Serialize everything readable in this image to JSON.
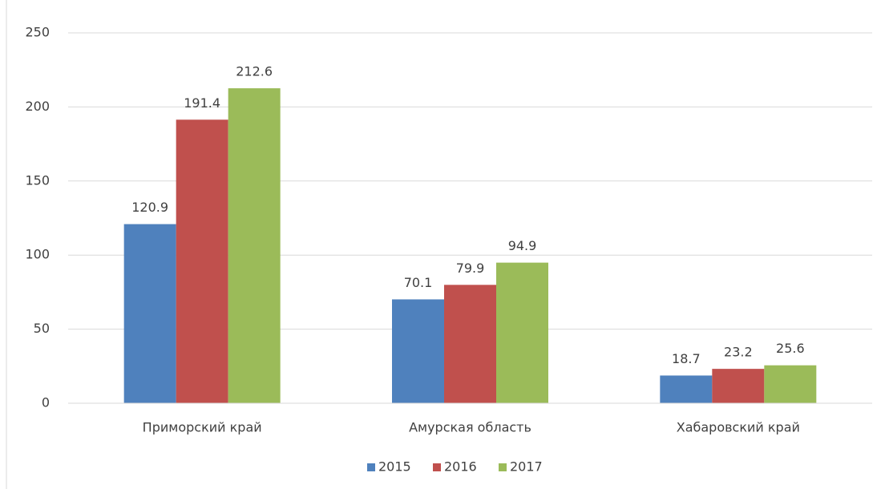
{
  "chart_data": {
    "type": "bar",
    "categories": [
      "Приморский край",
      "Амурская область",
      "Хабаровский край"
    ],
    "series": [
      {
        "name": "2015",
        "color": "#4f81bd",
        "values": [
          120.9,
          70.1,
          18.7
        ]
      },
      {
        "name": "2016",
        "color": "#c0504d",
        "values": [
          191.4,
          79.9,
          23.2
        ]
      },
      {
        "name": "2017",
        "color": "#9bbb59",
        "values": [
          212.6,
          94.9,
          25.6
        ]
      }
    ],
    "ylim": [
      0,
      250
    ],
    "yticks": [
      0,
      50,
      100,
      150,
      200,
      250
    ],
    "grid": true,
    "legend": "bottom"
  }
}
